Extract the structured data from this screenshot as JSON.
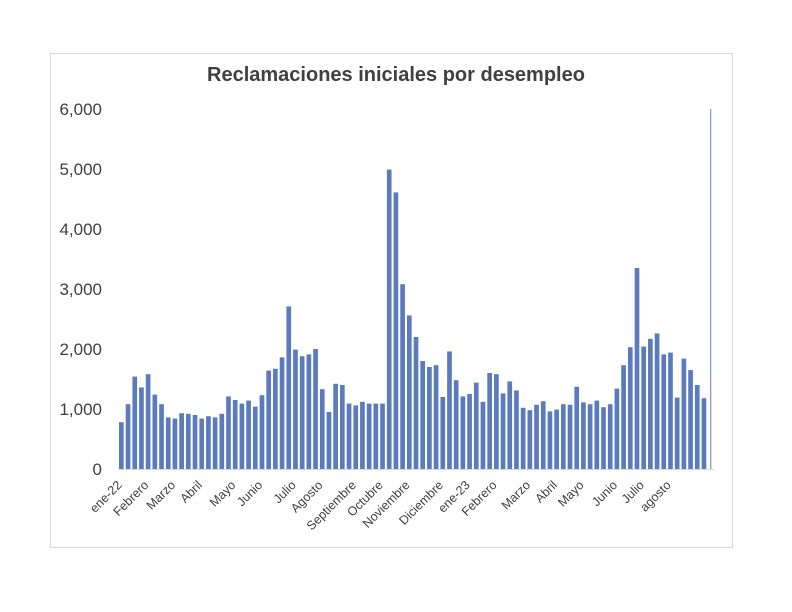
{
  "chart_data": {
    "type": "bar",
    "title": "Reclamaciones iniciales por desempleo",
    "xlabel": "",
    "ylabel": "",
    "ylim": [
      0,
      6000
    ],
    "yticks": [
      "0",
      "1,000",
      "2,000",
      "3,000",
      "4,000",
      "5,000",
      "6,000"
    ],
    "bar_color": "#5b7bbd",
    "x_labels": [
      {
        "label": "ene-22",
        "index": 0
      },
      {
        "label": "Febrero",
        "index": 4
      },
      {
        "label": "Marzo",
        "index": 8
      },
      {
        "label": "Abril",
        "index": 12
      },
      {
        "label": "Mayo",
        "index": 17
      },
      {
        "label": "Junio",
        "index": 21
      },
      {
        "label": "Julio",
        "index": 26
      },
      {
        "label": "Agosto",
        "index": 30
      },
      {
        "label": "Septiembre",
        "index": 35
      },
      {
        "label": "Octubre",
        "index": 39
      },
      {
        "label": "Noviembre",
        "index": 43
      },
      {
        "label": "Diciembre",
        "index": 48
      },
      {
        "label": "ene-23",
        "index": 52
      },
      {
        "label": "Febrero",
        "index": 56
      },
      {
        "label": "Marzo",
        "index": 61
      },
      {
        "label": "Abril",
        "index": 65
      },
      {
        "label": "Mayo",
        "index": 69
      },
      {
        "label": "Junio",
        "index": 74
      },
      {
        "label": "Julio",
        "index": 78
      },
      {
        "label": "agosto",
        "index": 82
      }
    ],
    "values": [
      780,
      1080,
      1540,
      1360,
      1580,
      1240,
      1080,
      860,
      840,
      930,
      920,
      900,
      840,
      880,
      860,
      920,
      1210,
      1150,
      1090,
      1140,
      1040,
      1230,
      1640,
      1670,
      1860,
      2710,
      1990,
      1880,
      1910,
      2000,
      1330,
      950,
      1420,
      1400,
      1090,
      1060,
      1120,
      1090,
      1090,
      1090,
      4990,
      4610,
      3080,
      2560,
      2200,
      1800,
      1700,
      1730,
      1200,
      1960,
      1480,
      1210,
      1250,
      1440,
      1120,
      1600,
      1580,
      1260,
      1460,
      1310,
      1020,
      980,
      1070,
      1130,
      960,
      990,
      1080,
      1070,
      1370,
      1110,
      1080,
      1140,
      1030,
      1080,
      1340,
      1730,
      2030,
      3350,
      2040,
      2170,
      2260,
      1910,
      1940,
      1190,
      1840,
      1650,
      1400,
      1180,
      6000
    ]
  }
}
